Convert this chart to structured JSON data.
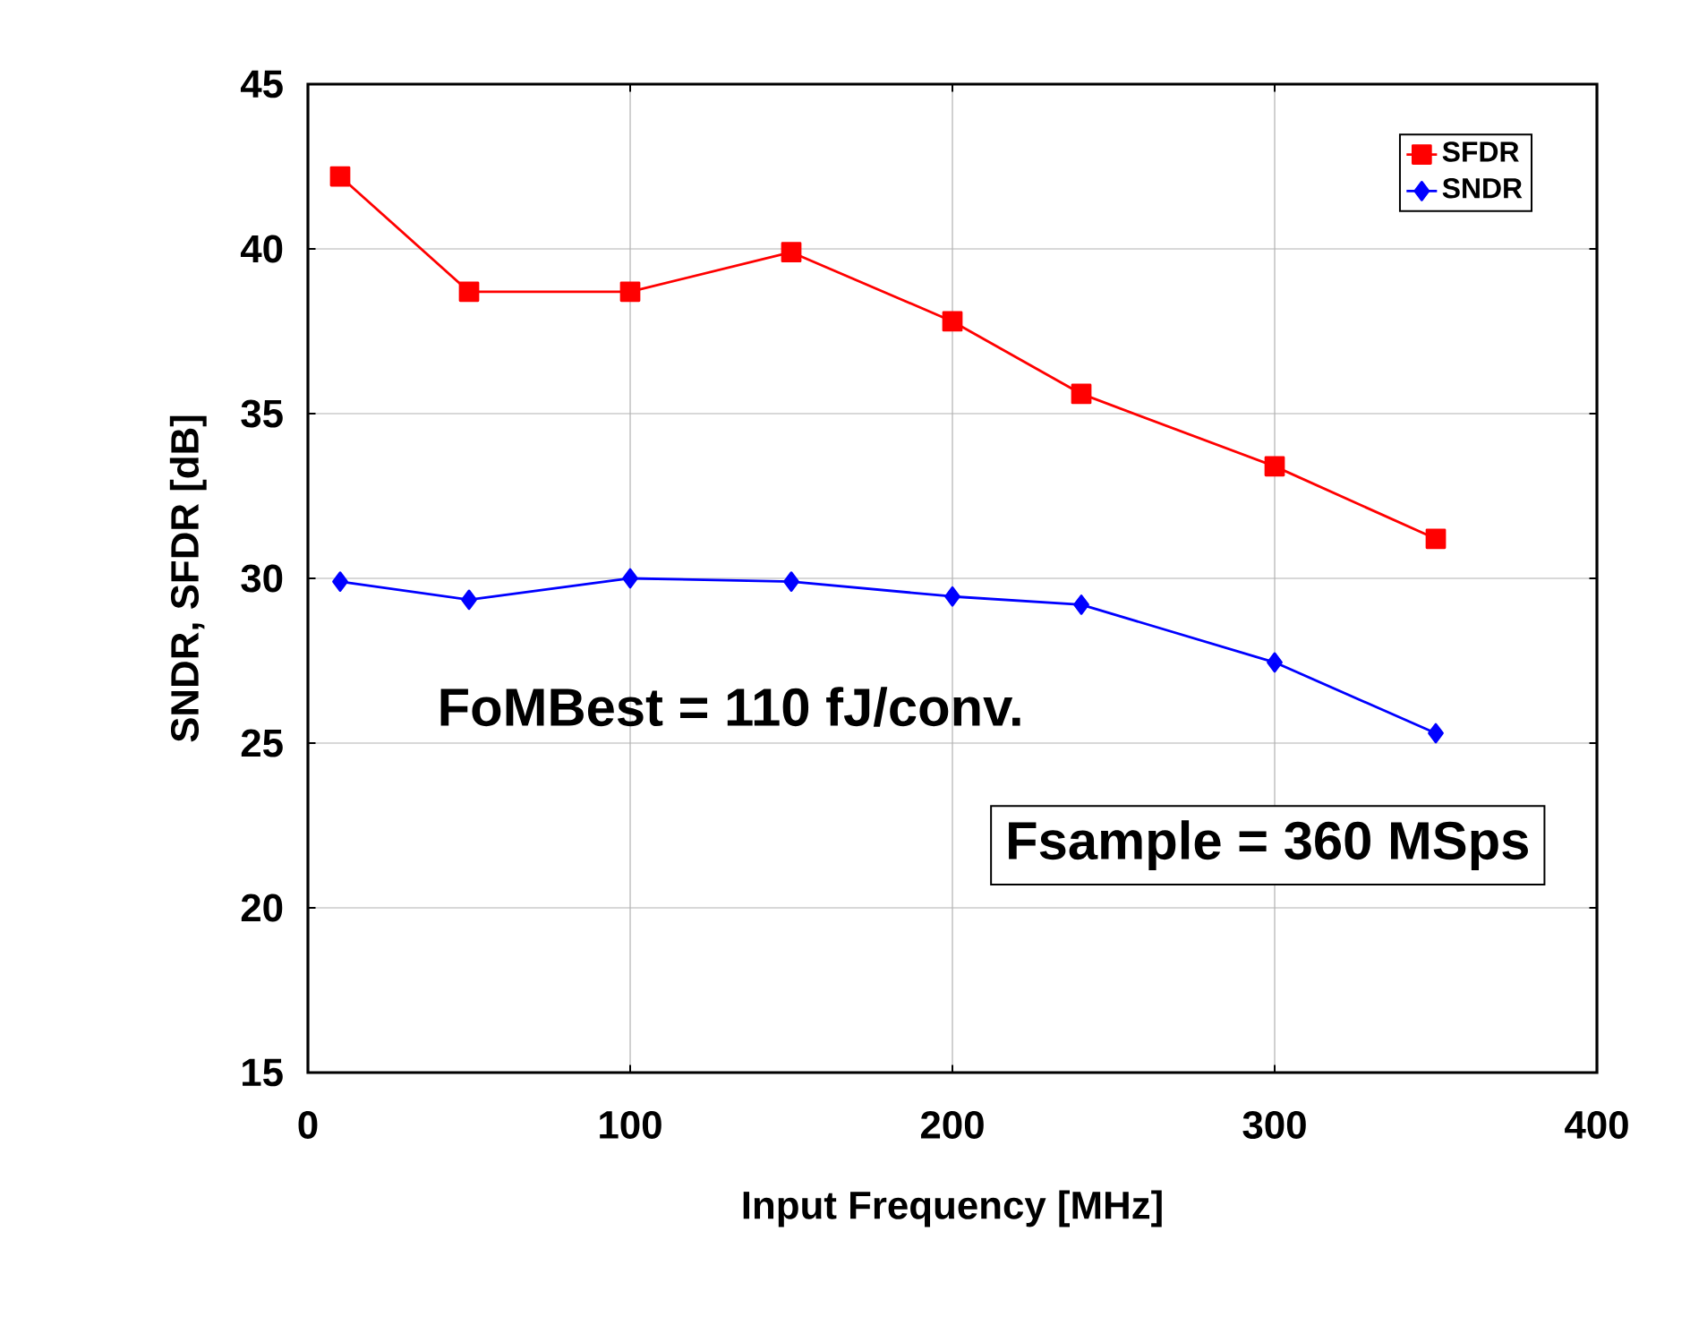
{
  "chart_data": {
    "type": "line",
    "xlabel": "Input Frequency [MHz]",
    "ylabel": "SNDR, SFDR [dB]",
    "x": [
      10,
      50,
      100,
      150,
      200,
      240,
      300,
      350
    ],
    "series": [
      {
        "name": "SFDR",
        "color": "#ff0000",
        "marker": "square",
        "values": [
          42.2,
          38.7,
          38.7,
          39.9,
          37.8,
          35.6,
          33.4,
          31.2
        ]
      },
      {
        "name": "SNDR",
        "color": "#0000ff",
        "marker": "diamond",
        "values": [
          29.9,
          29.35,
          30.0,
          29.9,
          29.45,
          29.2,
          27.45,
          25.3
        ]
      }
    ],
    "xlim": [
      0,
      400
    ],
    "xticks": [
      0,
      100,
      200,
      300,
      400
    ],
    "ylim": [
      15,
      45
    ],
    "yticks": [
      15,
      20,
      25,
      30,
      35,
      40,
      45
    ],
    "grid": true,
    "legend": "top right",
    "line_style": "solid",
    "annotations": [
      "FoMBest = 110 fJ/conv.",
      "Fsample = 360 MSps"
    ]
  }
}
